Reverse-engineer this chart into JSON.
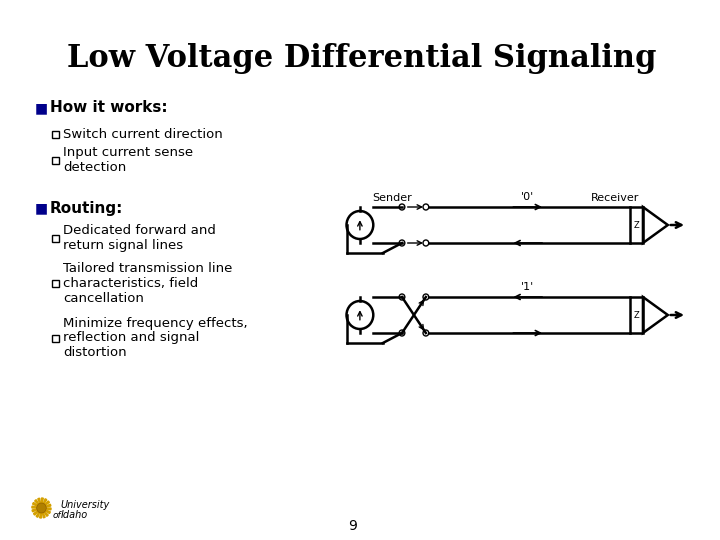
{
  "title": "Low Voltage Differential Signaling",
  "title_fontsize": 22,
  "bg_color": "#ffffff",
  "bullet1": "How it works:",
  "sub1a": "Switch current direction",
  "sub1b": "Input current sense\ndetection",
  "bullet2": "Routing:",
  "sub2a": "Dedicated forward and\nreturn signal lines",
  "sub2b": "Tailored transmission line\ncharacteristics, field\ncancellation",
  "sub2c": "Minimize frequency effects,\nreflection and signal\ndistortion",
  "page_num": "9",
  "sender_label": "Sender",
  "receiver_label": "Receiver",
  "label_0": "'0'",
  "label_1": "'1'",
  "bullet_color": "#00008b",
  "text_color": "#000000",
  "lw": 1.8
}
